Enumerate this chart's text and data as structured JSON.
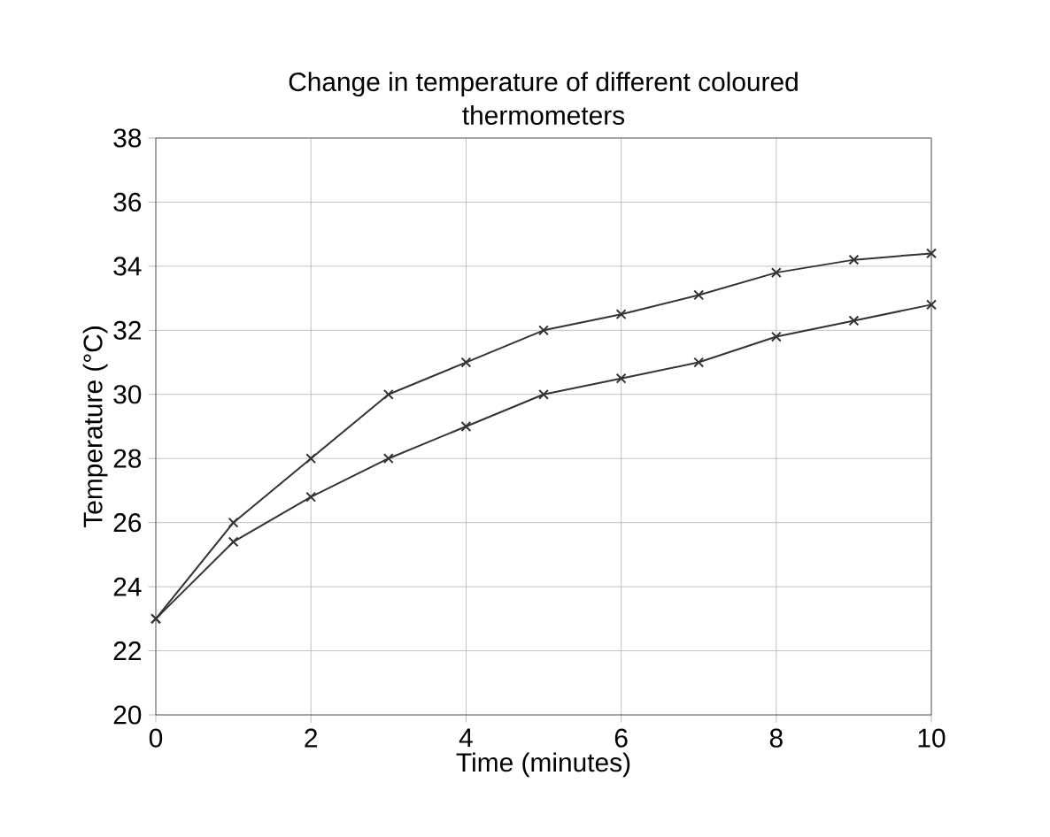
{
  "chart_data": {
    "type": "line",
    "title": "Change in temperature of different coloured thermometers",
    "xlabel": "Time (minutes)",
    "ylabel": "Temperature (°C)",
    "x": [
      0,
      1,
      2,
      3,
      4,
      5,
      6,
      7,
      8,
      9,
      10
    ],
    "series": [
      {
        "color": "#333333",
        "values": [
          23,
          26,
          28,
          30,
          31,
          32,
          32.5,
          33.1,
          33.8,
          34.2,
          34.4
        ]
      },
      {
        "color": "#333333",
        "values": [
          23,
          25.4,
          26.8,
          28,
          29,
          30,
          30.5,
          31,
          31.8,
          32.3,
          32.8
        ]
      }
    ],
    "xlim": [
      0,
      10
    ],
    "ylim": [
      20,
      38
    ],
    "xticks": [
      0,
      2,
      4,
      6,
      8,
      10
    ],
    "yticks": [
      20,
      22,
      24,
      26,
      28,
      30,
      32,
      34,
      36,
      38
    ],
    "grid": true,
    "marker": "cross",
    "line_style": "solid"
  }
}
